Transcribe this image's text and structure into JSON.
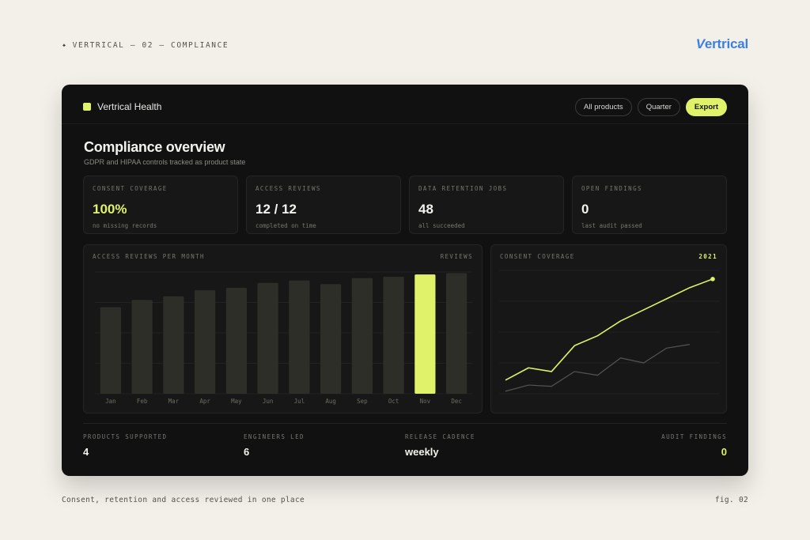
{
  "caption": {
    "top": "VERTRICAL — 02 — COMPLIANCE",
    "star": "✦",
    "bottom": "Consent, retention and access reviewed in one place",
    "fig": "fig. 02"
  },
  "logo": {
    "v": "V",
    "rest": "ertrical"
  },
  "app": {
    "brand": "Vertrical Health",
    "actions": {
      "all_products": "All products",
      "quarter": "Quarter",
      "export": "Export"
    },
    "title": "Compliance overview",
    "subtitle": "GDPR and HIPAA controls tracked as product state"
  },
  "kpis": [
    {
      "label": "CONSENT COVERAGE",
      "value": "100%",
      "note": "no missing records"
    },
    {
      "label": "ACCESS REVIEWS",
      "value": "12 / 12",
      "note": "completed on time"
    },
    {
      "label": "DATA RETENTION JOBS",
      "value": "48",
      "note": "all succeeded"
    },
    {
      "label": "OPEN FINDINGS",
      "value": "0",
      "note": "last audit passed"
    }
  ],
  "panels": {
    "bar": {
      "title": "ACCESS REVIEWS PER MONTH",
      "tag": "REVIEWS"
    },
    "line": {
      "title": "CONSENT COVERAGE",
      "tag": "2021"
    }
  },
  "chart_data": [
    {
      "type": "bar",
      "categories": [
        "Jan",
        "Feb",
        "Mar",
        "Apr",
        "May",
        "Jun",
        "Jul",
        "Aug",
        "Sep",
        "Oct",
        "Nov",
        "Dec"
      ],
      "values": [
        71,
        77,
        80,
        85,
        87,
        91,
        93,
        90,
        95,
        96,
        98,
        99
      ],
      "highlight_index": 10,
      "ylim": [
        0,
        100
      ],
      "grid": true,
      "colors": {
        "bar": "#2e2e28",
        "highlight": "#dff26a"
      }
    },
    {
      "type": "line",
      "x": [
        0,
        1,
        2,
        3,
        4,
        5,
        6,
        7,
        8,
        9,
        10
      ],
      "series": [
        {
          "values": [
            11,
            21,
            18,
            39,
            47,
            59,
            68,
            77,
            86,
            93,
            null
          ],
          "color": "#dff26a"
        },
        {
          "values": [
            2,
            7,
            6,
            18,
            15,
            29,
            25,
            37,
            40,
            null,
            null
          ],
          "color": "#55554f"
        }
      ],
      "ylim": [
        0,
        100
      ],
      "grid": true
    }
  ],
  "stats": [
    {
      "label": "PRODUCTS SUPPORTED",
      "value": "4"
    },
    {
      "label": "ENGINEERS LED",
      "value": "6"
    },
    {
      "label": "RELEASE CADENCE",
      "value": "weekly"
    },
    {
      "label": "AUDIT FINDINGS",
      "value": "0"
    }
  ]
}
